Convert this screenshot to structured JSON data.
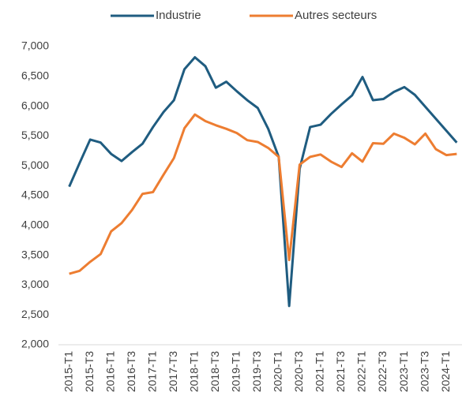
{
  "chart_data": {
    "type": "line",
    "categories": [
      "2015-T1",
      null,
      "2015-T3",
      null,
      "2016-T1",
      null,
      "2016-T3",
      null,
      "2017-T1",
      null,
      "2017-T3",
      null,
      "2018-T1",
      null,
      "2018-T3",
      null,
      "2019-T1",
      null,
      "2019-T3",
      null,
      "2020-T1",
      null,
      "2020-T3",
      null,
      "2021-T1",
      null,
      "2021-T3",
      null,
      "2022-T1",
      null,
      "2022-T3",
      null,
      "2023-T1",
      null,
      "2023-T3",
      null,
      "2024-T1",
      null
    ],
    "series": [
      {
        "name": "Industrie",
        "color": "#1f5c80",
        "values": [
          4650,
          5050,
          5440,
          5390,
          5200,
          5080,
          5230,
          5370,
          5650,
          5900,
          6100,
          6620,
          6820,
          6670,
          6310,
          6410,
          6250,
          6100,
          5970,
          5620,
          5150,
          2650,
          4950,
          5650,
          5690,
          5870,
          6030,
          6180,
          6490,
          6100,
          6120,
          6240,
          6320,
          6190,
          5990,
          5790,
          5590,
          5390
        ]
      },
      {
        "name": "Autres secteurs",
        "color": "#ed7d31",
        "values": [
          3190,
          3240,
          3390,
          3520,
          3900,
          4040,
          4260,
          4530,
          4560,
          4850,
          5130,
          5630,
          5860,
          5750,
          5680,
          5620,
          5550,
          5430,
          5400,
          5300,
          5150,
          3420,
          5020,
          5150,
          5190,
          5070,
          4980,
          5210,
          5070,
          5380,
          5370,
          5540,
          5470,
          5360,
          5540,
          5280,
          5180,
          5200
        ]
      }
    ],
    "ylim": [
      2000,
      7000
    ],
    "yticks": [
      {
        "value": 2000,
        "label": "2,000"
      },
      {
        "value": 2500,
        "label": "2,500"
      },
      {
        "value": 3000,
        "label": "3,000"
      },
      {
        "value": 3500,
        "label": "3,500"
      },
      {
        "value": 4000,
        "label": "4,000"
      },
      {
        "value": 4500,
        "label": "4,500"
      },
      {
        "value": 5000,
        "label": "5,000"
      },
      {
        "value": 5500,
        "label": "5,500"
      },
      {
        "value": 6000,
        "label": "6,000"
      },
      {
        "value": 6500,
        "label": "6,500"
      },
      {
        "value": 7000,
        "label": "7,000"
      }
    ],
    "grid": false,
    "legend": "top"
  }
}
